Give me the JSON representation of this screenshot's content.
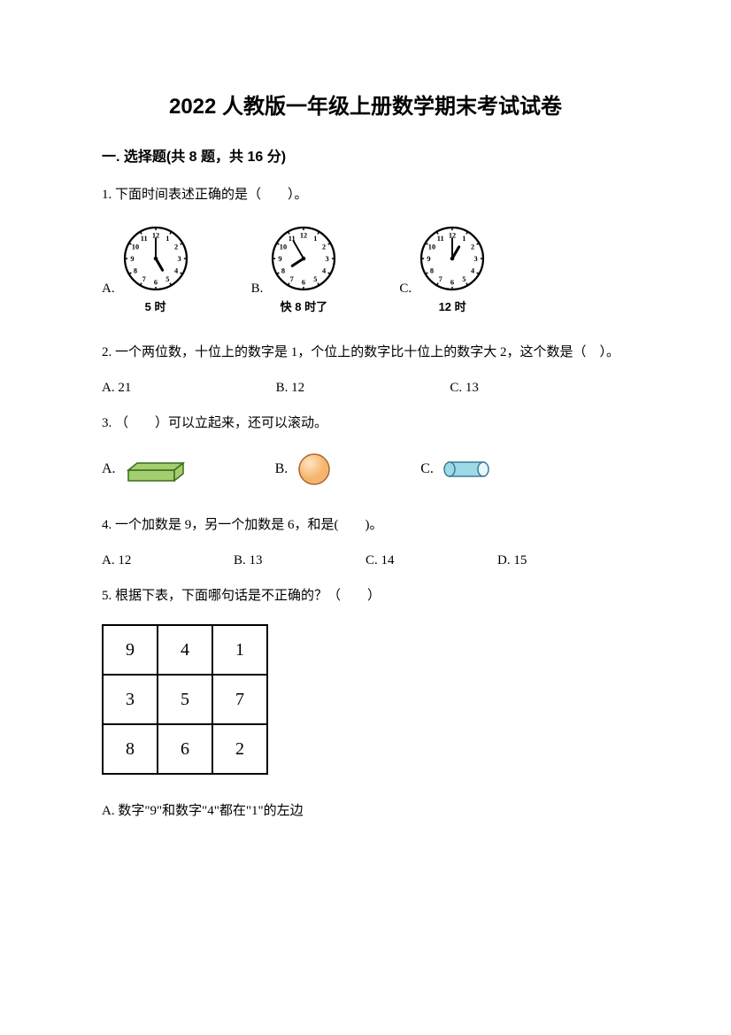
{
  "title": "2022 人教版一年级上册数学期末考试试卷",
  "section1": {
    "header": "一. 选择题(共 8 题，共 16 分)"
  },
  "q1": {
    "text": "1. 下面时间表述正确的是（　　）。",
    "optA": "A.",
    "optB": "B.",
    "optC": "C.",
    "captionA": "5 时",
    "captionB": "快 8 时了",
    "captionC": "12 时",
    "clockA": {
      "hour_angle": 150,
      "minute_angle": 0
    },
    "clockB": {
      "hour_angle": 237,
      "minute_angle": -30
    },
    "clockC": {
      "hour_angle": 30,
      "minute_angle": 0
    }
  },
  "q2": {
    "text": "2. 一个两位数，十位上的数字是 1，个位上的数字比十位上的数字大 2，这个数是（　）。",
    "optA": "A. 21",
    "optB": "B. 12",
    "optC": "C. 13"
  },
  "q3": {
    "text": "3. （　　）可以立起来，还可以滚动。",
    "optA": "A.",
    "optB": "B.",
    "optC": "C.",
    "cuboid_color": "#a5cf6f",
    "cuboid_stroke": "#3a6b1f",
    "sphere_color": "#f5b56e",
    "sphere_stroke": "#a8672e",
    "cylinder_color": "#9ed9e8",
    "cylinder_stroke": "#3a7d92"
  },
  "q4": {
    "text": "4. 一个加数是 9，另一个加数是 6，和是(　　)。",
    "optA": "A. 12",
    "optB": "B. 13",
    "optC": "C. 14",
    "optD": "D. 15"
  },
  "q5": {
    "text": "5. 根据下表，下面哪句话是不正确的？（　　）",
    "grid": [
      [
        "9",
        "4",
        "1"
      ],
      [
        "3",
        "5",
        "7"
      ],
      [
        "8",
        "6",
        "2"
      ]
    ],
    "optA": "A. 数字\"9\"和数字\"4\"都在\"1\"的左边"
  }
}
